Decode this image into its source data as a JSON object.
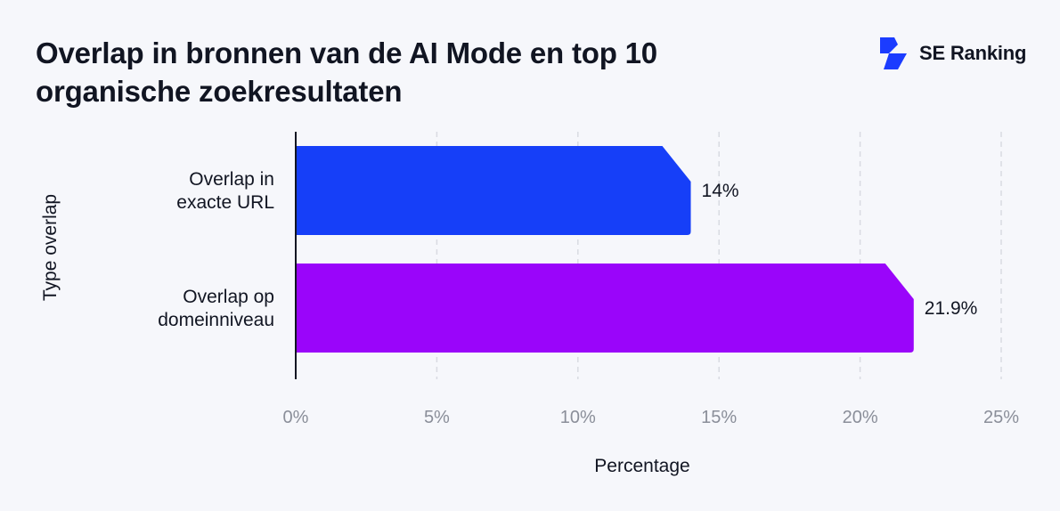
{
  "header": {
    "title": "Overlap in bronnen van de AI Mode en top 10 organische zoekresultaten",
    "brand_name": "SE Ranking",
    "brand_icon": "se-ranking-logo-icon",
    "brand_color": "#1b3cff"
  },
  "chart_data": {
    "type": "bar",
    "orientation": "horizontal",
    "title": "Overlap in bronnen van de AI Mode en top 10 organische zoekresultaten",
    "categories": [
      "Overlap in exacte URL",
      "Overlap op domeinniveau"
    ],
    "values": [
      14,
      21.9
    ],
    "value_labels": [
      "14%",
      "21.9%"
    ],
    "colors": [
      "#163ff8",
      "#9a05fa"
    ],
    "xlabel": "Percentage",
    "ylabel": "Type overlap",
    "xlim": [
      0,
      25
    ],
    "xticks": [
      0,
      5,
      10,
      15,
      20,
      25
    ],
    "xtick_labels": [
      "0%",
      "5%",
      "10%",
      "15%",
      "20%",
      "25%"
    ],
    "grid": "vertical dashed",
    "legend": "none"
  }
}
